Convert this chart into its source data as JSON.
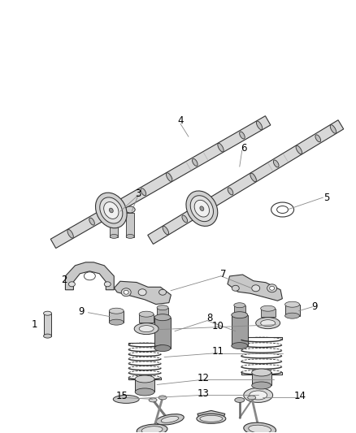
{
  "background_color": "#ffffff",
  "line_color": "#333333",
  "text_color": "#000000",
  "label_font_size": 8.5,
  "fig_width": 4.38,
  "fig_height": 5.33,
  "dpi": 100
}
